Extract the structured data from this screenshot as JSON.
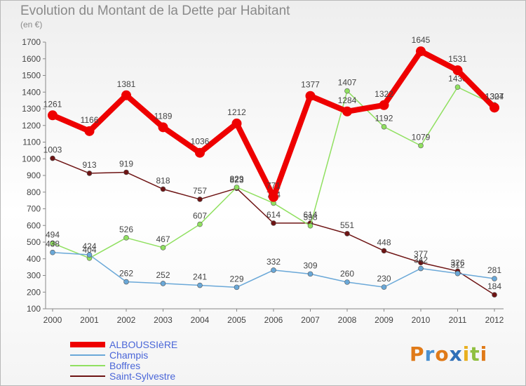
{
  "chart_data": {
    "type": "line",
    "title": "Evolution du Montant de la Dette par Habitant",
    "subtitle": "(en €)",
    "x": [
      "2000",
      "2001",
      "2002",
      "2003",
      "2004",
      "2005",
      "2006",
      "2007",
      "2008",
      "2009",
      "2010",
      "2011",
      "2012"
    ],
    "ylim": [
      100,
      1700
    ],
    "yticks": [
      100,
      200,
      300,
      400,
      500,
      600,
      700,
      800,
      900,
      1000,
      1100,
      1200,
      1300,
      1400,
      1500,
      1600,
      1700
    ],
    "grid": false,
    "legend_position": "bottom-left",
    "series": [
      {
        "name": "Saint-Sylvestre",
        "color": "#6e1414",
        "values": [
          1003,
          913,
          919,
          818,
          757,
          823,
          614,
          614,
          551,
          448,
          377,
          326,
          184
        ]
      },
      {
        "name": "Boffres",
        "color": "#90e060",
        "values": [
          494,
          404,
          526,
          467,
          607,
          829,
          734,
          598,
          1407,
          1192,
          1079,
          1430,
          1324
        ]
      },
      {
        "name": "Champis",
        "color": "#6aa8d8",
        "values": [
          438,
          424,
          262,
          252,
          241,
          229,
          332,
          309,
          260,
          230,
          342,
          312,
          281
        ]
      },
      {
        "name": "ALBOUSSIèRE",
        "color": "#ee0000",
        "values": [
          1261,
          1166,
          1381,
          1189,
          1036,
          1212,
          771,
          1377,
          1284,
          1322,
          1645,
          1531,
          1307
        ]
      }
    ]
  },
  "legend": {
    "items": [
      {
        "label": "ALBOUSSIèRE",
        "color": "#ee0000",
        "thickness": 8
      },
      {
        "label": "Champis",
        "color": "#6aa8d8",
        "thickness": 2
      },
      {
        "label": "Boffres",
        "color": "#90e060",
        "thickness": 2
      },
      {
        "label": "Saint-Sylvestre",
        "color": "#6e1414",
        "thickness": 2
      }
    ]
  },
  "brand": {
    "text": "Proxiti",
    "colors": [
      "#e07a18",
      "#4a90d0",
      "#e07a18",
      "#2f6fb8",
      "#e8b020",
      "#90c040",
      "#e07a18"
    ]
  }
}
